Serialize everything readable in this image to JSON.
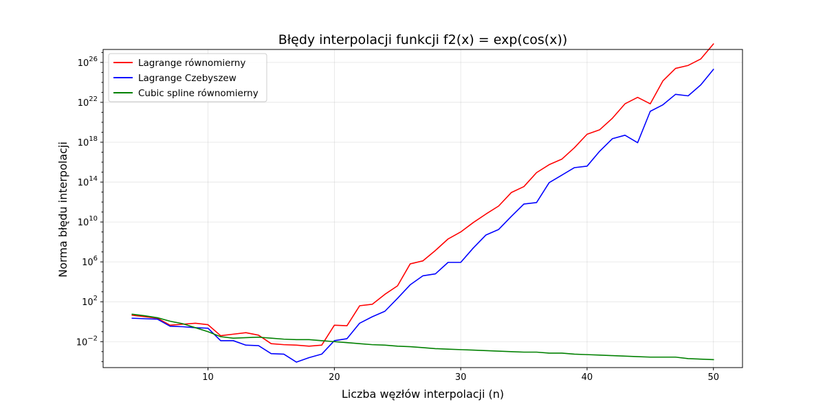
{
  "chart_data": {
    "type": "line",
    "title": "Błędy interpolacji funkcji f2(x) = exp(cos(x))",
    "xlabel": "Liczba węzłów interpolacji (n)",
    "ylabel": "Norma błędu interpolacji",
    "x_scale": "linear",
    "y_scale": "log",
    "xlim": [
      1.7,
      52.3
    ],
    "ylim_log10": [
      -4.6,
      27.3
    ],
    "x_ticks": [
      10,
      20,
      30,
      40,
      50
    ],
    "y_ticks_exp": [
      -2,
      2,
      6,
      10,
      14,
      18,
      22,
      26
    ],
    "grid": true,
    "legend_position": "top-left",
    "x": [
      4,
      5,
      6,
      7,
      8,
      9,
      10,
      11,
      12,
      13,
      14,
      15,
      16,
      17,
      18,
      19,
      20,
      21,
      22,
      23,
      24,
      25,
      26,
      27,
      28,
      29,
      30,
      31,
      32,
      33,
      34,
      35,
      36,
      37,
      38,
      39,
      40,
      41,
      42,
      43,
      44,
      45,
      46,
      47,
      48,
      49,
      50
    ],
    "series": [
      {
        "name": "Lagrange równomierny",
        "color": "#ff0000",
        "log10_values": [
          0.65,
          0.5,
          0.35,
          -0.35,
          -0.25,
          -0.15,
          -0.3,
          -1.4,
          -1.25,
          -1.1,
          -1.35,
          -2.2,
          -2.3,
          -2.35,
          -2.45,
          -2.35,
          -0.35,
          -0.4,
          1.6,
          1.75,
          2.75,
          3.6,
          5.8,
          6.1,
          7.15,
          8.3,
          9.0,
          9.95,
          10.8,
          11.6,
          12.95,
          13.55,
          14.95,
          15.75,
          16.3,
          17.45,
          18.8,
          19.25,
          20.4,
          21.85,
          22.5,
          21.85,
          24.15,
          25.4,
          25.7,
          26.35,
          27.85
        ],
        "values": [
          4.47,
          3.16,
          2.24,
          0.447,
          0.562,
          0.708,
          0.501,
          0.0398,
          0.0562,
          0.0794,
          0.0447,
          0.00631,
          0.00501,
          0.00447,
          0.00355,
          0.00447,
          0.447,
          0.398,
          39.8,
          56.2,
          562,
          3980,
          631000,
          1260000,
          14100000,
          200000000,
          1000000000,
          8910000000,
          63100000000,
          398000000000,
          8910000000000,
          35500000000000,
          891000000000000,
          5620000000000000.0,
          2e+16,
          2.82e+17,
          6.31e+18,
          1.78e+19,
          2.51e+20,
          7.08e+21,
          3.16e+22,
          7.08e+21,
          1.41e+24,
          2.51e+25,
          5.01e+25,
          2.24e+26,
          7.08e+27
        ]
      },
      {
        "name": "Lagrange Czebyszew",
        "color": "#0000ff",
        "log10_values": [
          0.35,
          0.3,
          0.25,
          -0.45,
          -0.5,
          -0.6,
          -0.65,
          -1.9,
          -1.9,
          -2.35,
          -2.4,
          -3.2,
          -3.25,
          -4.05,
          -3.6,
          -3.25,
          -1.9,
          -1.7,
          -0.15,
          0.5,
          1.05,
          2.35,
          3.7,
          4.6,
          4.8,
          5.95,
          5.95,
          7.4,
          8.7,
          9.25,
          10.55,
          11.8,
          11.95,
          13.95,
          14.7,
          15.45,
          15.6,
          17.1,
          18.35,
          18.7,
          17.95,
          21.1,
          21.75,
          22.8,
          22.65,
          23.75,
          25.3
        ],
        "values": [
          2.24,
          2.0,
          1.78,
          0.355,
          0.316,
          0.251,
          0.224,
          0.0126,
          0.0126,
          0.00447,
          0.00398,
          0.000631,
          0.000562,
          8.91e-05,
          0.000251,
          0.000562,
          0.0126,
          0.02,
          0.708,
          3.16,
          11.2,
          224,
          5010,
          39800,
          63100,
          891000,
          891000,
          25100000,
          501000000,
          1780000000,
          35500000000,
          631000000000,
          891000000000,
          89100000000000,
          501000000000000,
          2820000000000000.0,
          3980000000000000.0,
          1.26e+17,
          2.24e+18,
          5.01e+18,
          8.91e+17,
          1.26e+21,
          5.62e+21,
          6.31e+22,
          4.47e+22,
          5.62e+23,
          2e+25
        ]
      },
      {
        "name": "Cubic spline równomierny",
        "color": "#008000",
        "log10_values": [
          0.75,
          0.6,
          0.4,
          0.05,
          -0.2,
          -0.6,
          -1.0,
          -1.5,
          -1.65,
          -1.6,
          -1.55,
          -1.65,
          -1.75,
          -1.8,
          -1.8,
          -1.9,
          -2.0,
          -2.1,
          -2.2,
          -2.3,
          -2.35,
          -2.45,
          -2.5,
          -2.6,
          -2.7,
          -2.75,
          -2.8,
          -2.85,
          -2.9,
          -2.95,
          -3.0,
          -3.05,
          -3.05,
          -3.15,
          -3.15,
          -3.25,
          -3.3,
          -3.35,
          -3.4,
          -3.45,
          -3.5,
          -3.55,
          -3.55,
          -3.55,
          -3.7,
          -3.75,
          -3.8
        ],
        "values": [
          5.62,
          3.98,
          2.51,
          1.12,
          0.631,
          0.251,
          0.1,
          0.0316,
          0.0224,
          0.0251,
          0.0282,
          0.0224,
          0.0178,
          0.0158,
          0.0158,
          0.0126,
          0.01,
          0.00794,
          0.00631,
          0.00501,
          0.00447,
          0.00355,
          0.00316,
          0.00251,
          0.002,
          0.00178,
          0.00158,
          0.00141,
          0.00126,
          0.00112,
          0.001,
          0.000891,
          0.000891,
          0.000708,
          0.000708,
          0.000562,
          0.000501,
          0.000447,
          0.000398,
          0.000355,
          0.000316,
          0.000282,
          0.000282,
          0.000282,
          0.0002,
          0.000178,
          0.000158
        ]
      }
    ]
  }
}
